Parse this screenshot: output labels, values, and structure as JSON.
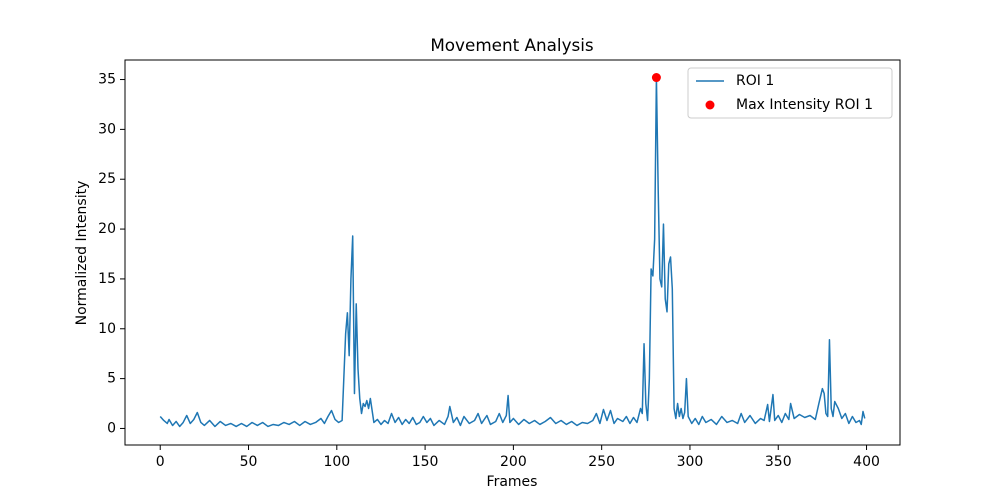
{
  "chart_data": {
    "type": "line",
    "title": "Movement Analysis",
    "x_label": "Frames",
    "y_label": "Normalized Intensity",
    "xlim": [
      -19.95,
      418.95
    ],
    "ylim": [
      -1.66,
      36.96
    ],
    "xticks": [
      0,
      50,
      100,
      150,
      200,
      250,
      300,
      350,
      400
    ],
    "yticks": [
      0,
      5,
      10,
      15,
      20,
      25,
      30,
      35
    ],
    "legend": "upper right",
    "series": [
      {
        "name": "ROI 1",
        "color": "#1f77b4",
        "type": "line",
        "x": [
          0,
          2,
          4,
          5,
          7,
          9,
          11,
          13,
          15,
          17,
          19,
          21,
          23,
          25,
          28,
          31,
          34,
          37,
          40,
          43,
          46,
          49,
          52,
          55,
          58,
          61,
          64,
          67,
          70,
          73,
          76,
          79,
          82,
          85,
          88,
          91,
          93,
          95,
          97,
          99,
          101,
          103,
          105,
          106,
          107,
          108,
          109,
          110,
          111,
          112,
          113,
          114,
          115,
          116,
          117,
          118,
          119,
          120,
          121,
          123,
          125,
          127,
          129,
          131,
          133,
          135,
          137,
          139,
          141,
          143,
          145,
          147,
          149,
          151,
          153,
          155,
          158,
          161,
          163,
          164,
          166,
          168,
          170,
          172,
          175,
          178,
          180,
          182,
          185,
          187,
          190,
          192,
          194,
          196,
          197,
          198,
          200,
          203,
          206,
          209,
          212,
          215,
          218,
          221,
          224,
          227,
          230,
          233,
          236,
          239,
          242,
          245,
          247,
          249,
          251,
          253,
          255,
          257,
          259,
          262,
          264,
          266,
          268,
          270,
          272,
          273,
          274,
          275,
          276,
          277,
          278,
          279,
          280,
          281,
          282,
          283,
          284,
          285,
          286,
          287,
          288,
          289,
          290,
          291,
          292,
          293,
          294,
          295,
          296,
          297,
          298,
          299,
          301,
          303,
          305,
          307,
          309,
          312,
          315,
          318,
          321,
          324,
          327,
          329,
          331,
          334,
          337,
          340,
          342,
          344,
          345,
          347,
          348,
          350,
          352,
          354,
          356,
          357,
          359,
          362,
          365,
          368,
          371,
          373,
          375,
          376,
          377,
          378,
          379,
          380,
          381,
          382,
          384,
          386,
          388,
          390,
          392,
          394,
          396,
          397,
          398,
          399
        ],
        "values": [
          1.2,
          0.8,
          0.5,
          0.9,
          0.3,
          0.7,
          0.2,
          0.6,
          1.3,
          0.5,
          0.9,
          1.6,
          0.6,
          0.3,
          0.8,
          0.2,
          0.7,
          0.3,
          0.5,
          0.2,
          0.5,
          0.2,
          0.6,
          0.3,
          0.6,
          0.2,
          0.4,
          0.3,
          0.6,
          0.4,
          0.7,
          0.3,
          0.7,
          0.4,
          0.6,
          1.0,
          0.5,
          1.2,
          1.8,
          0.9,
          0.6,
          0.8,
          9.5,
          11.6,
          7.3,
          15,
          19.3,
          3.5,
          12.5,
          6,
          3,
          1.5,
          2.5,
          2.2,
          2.8,
          2.0,
          3.0,
          1.8,
          0.6,
          0.9,
          0.4,
          0.8,
          0.5,
          1.5,
          0.6,
          1.1,
          0.4,
          0.9,
          0.5,
          1.1,
          0.4,
          0.6,
          1.2,
          0.6,
          1.0,
          0.3,
          0.8,
          0.4,
          1.2,
          2.2,
          0.6,
          1.1,
          0.3,
          1.2,
          0.5,
          0.8,
          1.5,
          0.5,
          1.3,
          0.4,
          0.7,
          1.5,
          0.6,
          1.3,
          3.3,
          0.6,
          1.0,
          0.4,
          0.9,
          0.5,
          0.8,
          0.4,
          0.7,
          1.1,
          0.5,
          0.8,
          0.4,
          0.7,
          0.3,
          0.6,
          0.5,
          0.8,
          1.5,
          0.5,
          1.9,
          0.8,
          1.8,
          0.5,
          1.0,
          0.7,
          1.2,
          0.5,
          1.1,
          0.6,
          2.0,
          1.5,
          8.5,
          2.5,
          0.8,
          5,
          16,
          15.3,
          19,
          35.2,
          24,
          15,
          14.2,
          20.5,
          13,
          11.7,
          16.5,
          17.2,
          14,
          2.0,
          1.0,
          2.5,
          1.2,
          2.0,
          1.0,
          1.6,
          5.0,
          1.2,
          0.5,
          1.0,
          0.4,
          1.2,
          0.6,
          0.9,
          0.4,
          1.2,
          0.6,
          0.8,
          0.5,
          1.5,
          0.6,
          1.3,
          0.5,
          1.0,
          0.8,
          2.4,
          0.7,
          3.4,
          0.8,
          1.3,
          0.6,
          1.5,
          0.9,
          2.5,
          1.0,
          1.4,
          1.1,
          1.3,
          0.9,
          2.5,
          4.0,
          3.5,
          1.5,
          1.2,
          8.9,
          2.0,
          1.2,
          2.7,
          2.0,
          1.0,
          1.5,
          0.5,
          1.2,
          0.6,
          0.8,
          0.4,
          1.7,
          1.0
        ]
      },
      {
        "name": "Max Intensity ROI 1",
        "color": "#ff0000",
        "type": "scatter",
        "x": [
          281
        ],
        "values": [
          35.2
        ]
      }
    ]
  }
}
